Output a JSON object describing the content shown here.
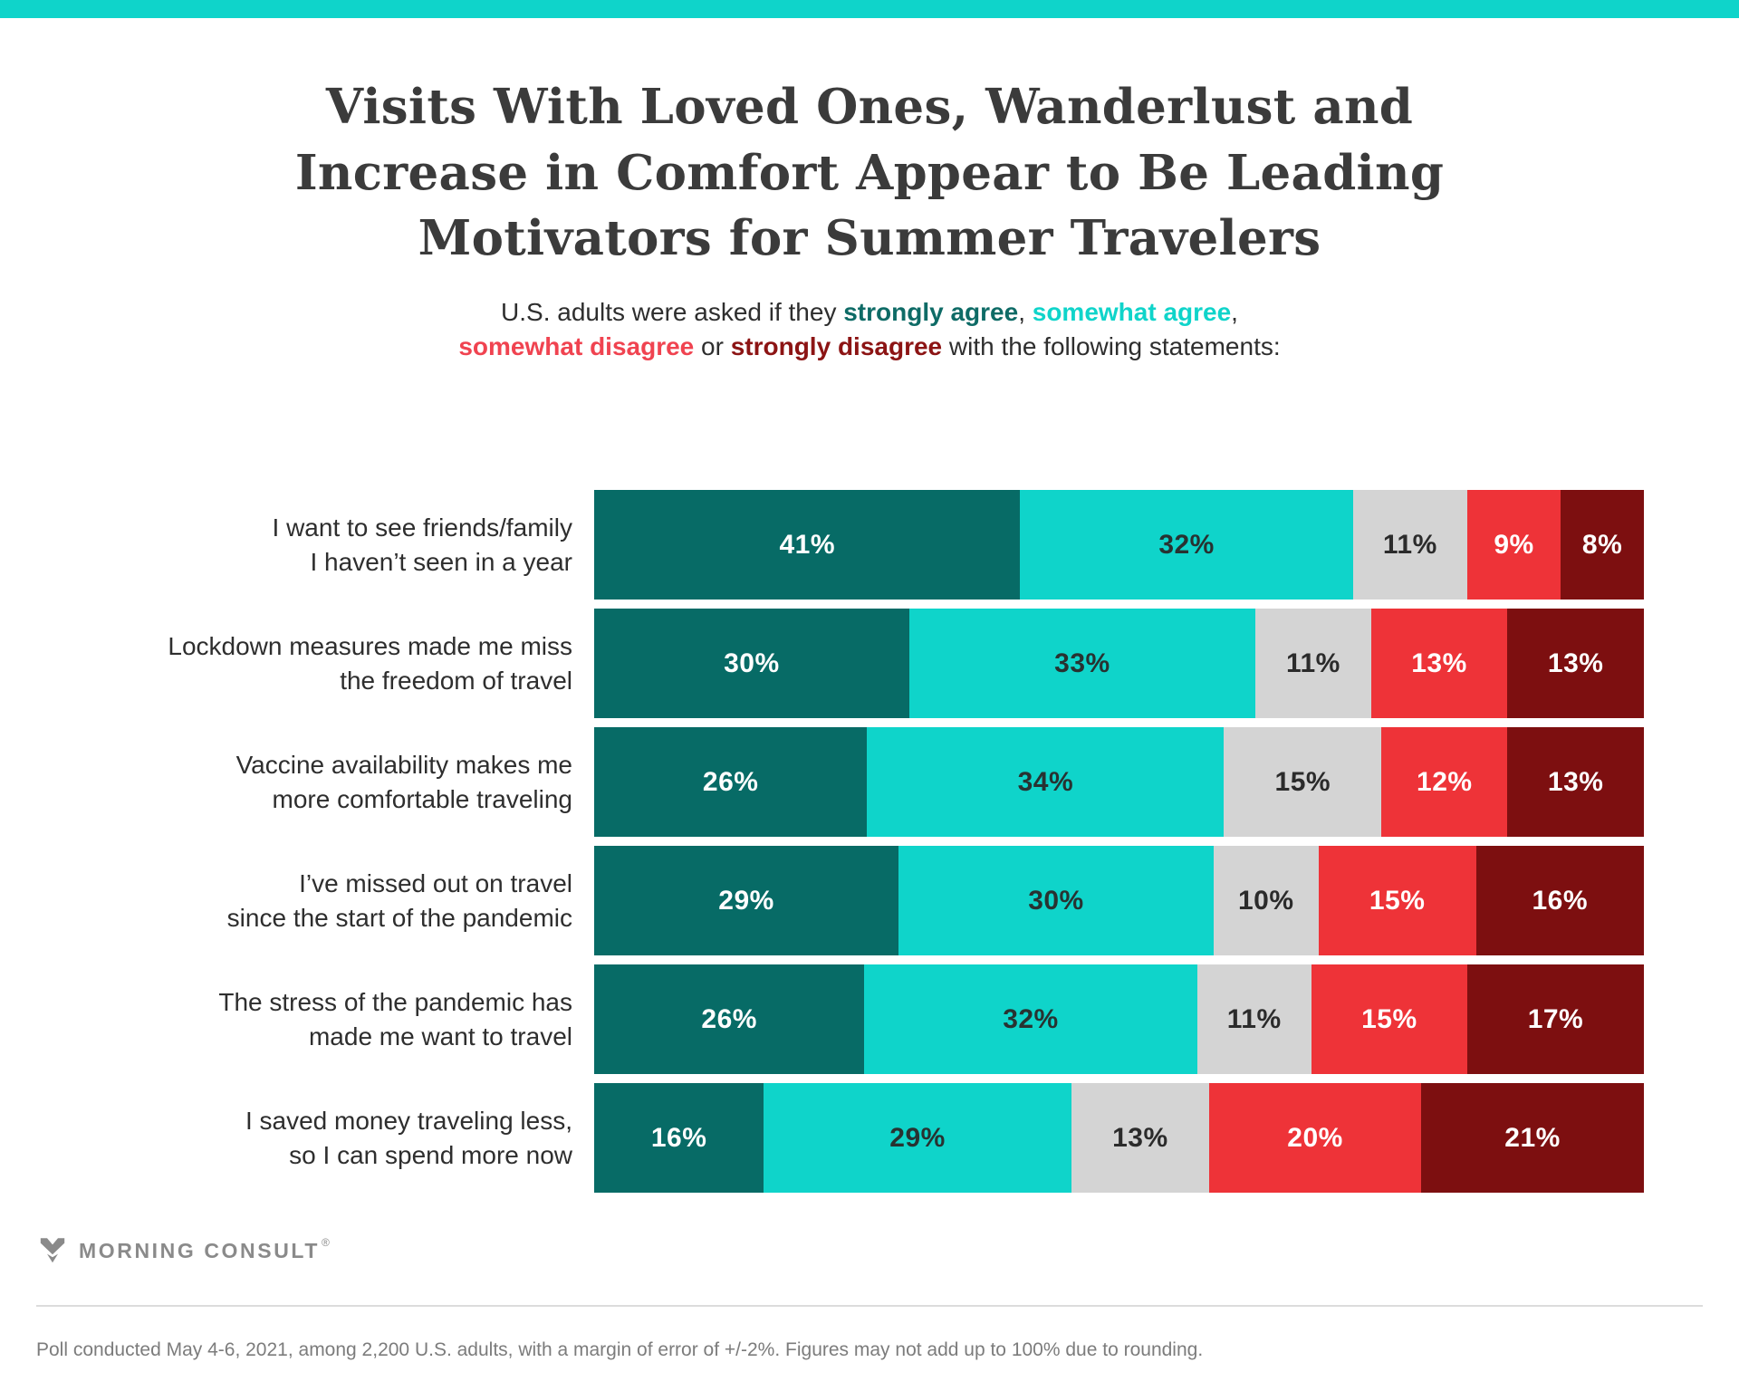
{
  "colors": {
    "accent": "#0FD4CA",
    "title_text": "#3B3B3B",
    "logo_gray": "#8A8A8A",
    "footer_text": "#7C7C7C"
  },
  "header": {
    "title": "Visits With Loved Ones, Wanderlust and\nIncrease in Comfort Appear to Be Leading\nMotivators for Summer Travelers"
  },
  "subtitle": {
    "parts": [
      {
        "style": "plain",
        "text": "U.S. adults were asked if they "
      },
      {
        "style": "strongly-agree",
        "text": "strongly agree"
      },
      {
        "style": "plain",
        "text": ", "
      },
      {
        "style": "somewhat-agree",
        "text": "somewhat agree"
      },
      {
        "style": "plain",
        "text": ",\n"
      },
      {
        "style": "somewhat-disagree",
        "text": "somewhat disagree"
      },
      {
        "style": "plain",
        "text": " or "
      },
      {
        "style": "strongly-disagree",
        "text": "strongly disagree"
      },
      {
        "style": "plain",
        "text": " with the following statements:"
      }
    ],
    "term_colors": {
      "strongly-agree": "#0E6B66",
      "somewhat-agree": "#0FD4CA",
      "somewhat-disagree": "#F04350",
      "strongly-disagree": "#8C1414"
    }
  },
  "chart_data": {
    "type": "bar",
    "stacked": true,
    "orientation": "horizontal",
    "value_suffix": "%",
    "xlim": [
      0,
      100
    ],
    "axis_visible": false,
    "legend_position": "inline-in-subtitle",
    "categories": [
      "I want to see friends/family\nI haven’t seen in a year",
      "Lockdown measures made me miss\nthe freedom of travel",
      "Vaccine availability makes me\nmore comfortable traveling",
      "I’ve missed out on travel\nsince the start of the pandemic",
      "The stress of the pandemic has\nmade me want to travel",
      "I saved money traveling less,\nso I can spend more now"
    ],
    "series": [
      {
        "name": "strongly agree",
        "color": "#076B66",
        "text_color": "#FFFFFF",
        "values": [
          41,
          30,
          26,
          29,
          26,
          16
        ]
      },
      {
        "name": "somewhat agree",
        "color": "#0FD4CA",
        "text_color": "#283231",
        "values": [
          32,
          33,
          34,
          30,
          32,
          29
        ]
      },
      {
        "name": "",
        "color": "#D4D4D4",
        "text_color": "#2B2B2B",
        "values": [
          11,
          11,
          15,
          10,
          11,
          13
        ]
      },
      {
        "name": "somewhat disagree",
        "color": "#EE3338",
        "text_color": "#FFFFFF",
        "values": [
          9,
          13,
          12,
          15,
          15,
          20
        ]
      },
      {
        "name": "strongly disagree",
        "color": "#7D0F10",
        "text_color": "#FFFFFF",
        "values": [
          8,
          13,
          13,
          16,
          17,
          21
        ]
      }
    ]
  },
  "footer": {
    "logo_text": "MORNING CONSULT",
    "logo_reg": "®",
    "note": "Poll conducted May 4-6, 2021, among 2,200 U.S. adults, with a margin of error of +/-2%. Figures may not add up to 100% due to rounding."
  }
}
